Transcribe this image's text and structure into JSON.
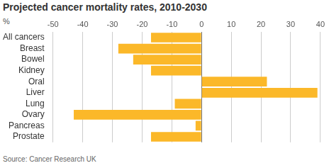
{
  "chart_data": {
    "type": "bar",
    "orientation": "horizontal",
    "title": "Projected cancer mortality rates, 2010-2030",
    "xlabel": "%",
    "source": "Source: Cancer Research UK",
    "categories": [
      "All cancers",
      "Breast",
      "Bowel",
      "Kidney",
      "Oral",
      "Liver",
      "Lung",
      "Ovary",
      "Pancreas",
      "Prostate"
    ],
    "values": [
      -17,
      -28,
      -23,
      -17,
      22,
      39,
      -9,
      -43,
      -2,
      -17
    ],
    "color": "#fbb829",
    "xlim": [
      -50,
      40
    ],
    "xticks": [
      -50,
      -40,
      -30,
      -20,
      -10,
      0,
      10,
      20,
      30,
      40
    ],
    "grid": true
  }
}
